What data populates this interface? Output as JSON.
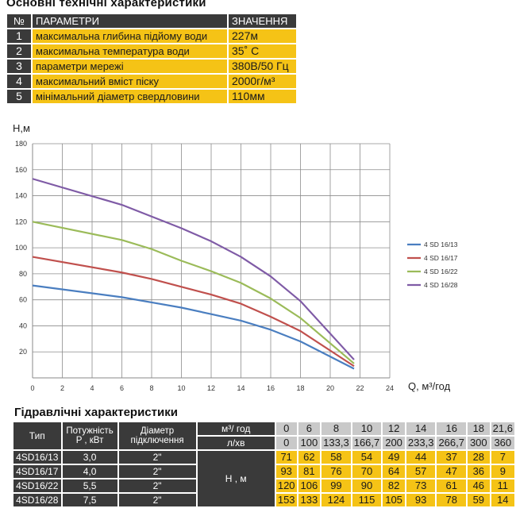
{
  "spec": {
    "title": "Основні технічні характеристики",
    "header": {
      "num": "№",
      "param": "ПАРАМЕТРИ",
      "value": "ЗНАЧЕННЯ"
    },
    "rows": [
      {
        "num": "1",
        "param": "максимальна глибина підйому води",
        "value": "227м"
      },
      {
        "num": "2",
        "param": "максимальна температура води",
        "value": "35˚ С"
      },
      {
        "num": "3",
        "param": "параметри мережі",
        "value": "380В/50 Гц"
      },
      {
        "num": "4",
        "param": "максимальний вміст піску",
        "value": "2000г/м³"
      },
      {
        "num": "5",
        "param": "мінімальний діаметр свердловини",
        "value": "110мм"
      }
    ]
  },
  "chart_data": {
    "type": "line",
    "ylabel": "H,м",
    "xlabel": "Q, м³/год",
    "xlim": [
      0,
      24
    ],
    "ylim": [
      0,
      180
    ],
    "xticks": [
      "0",
      "2",
      "4",
      "6",
      "8",
      "10",
      "12",
      "14",
      "16",
      "18",
      "20",
      "22",
      "24"
    ],
    "yticks": [
      "20",
      "40",
      "60",
      "80",
      "100",
      "120",
      "140",
      "160",
      "180"
    ],
    "grid": true,
    "legend_position": "right",
    "x": [
      0,
      6,
      8,
      10,
      12,
      14,
      16,
      18,
      21.6
    ],
    "series": [
      {
        "name": "4 SD 16/13",
        "color": "#4a7ec0",
        "values": [
          71,
          62,
          58,
          54,
          49,
          44,
          37,
          28,
          7
        ]
      },
      {
        "name": "4 SD 16/17",
        "color": "#c0504d",
        "values": [
          93,
          81,
          76,
          70,
          64,
          57,
          47,
          36,
          9
        ]
      },
      {
        "name": "4 SD 16/22",
        "color": "#9bbb59",
        "values": [
          120,
          106,
          99,
          90,
          82,
          73,
          61,
          46,
          11
        ]
      },
      {
        "name": "4 SD 16/28",
        "color": "#7f5ba6",
        "values": [
          153,
          133,
          124,
          115,
          105,
          93,
          78,
          59,
          14
        ]
      }
    ]
  },
  "hydraulic": {
    "title": "Гідравлічні характеристики",
    "col_type": "Тип",
    "col_power": [
      "Потужність",
      "P , кВт"
    ],
    "col_diameter": [
      "Діаметр",
      "підключення"
    ],
    "unit_m3h": "м³/ год",
    "unit_lmin": "л/хв",
    "head_label": "Н , м",
    "flow_m3h": [
      "0",
      "6",
      "8",
      "10",
      "12",
      "14",
      "16",
      "18",
      "21,6"
    ],
    "flow_lmin": [
      "0",
      "100",
      "133,3",
      "166,7",
      "200",
      "233,3",
      "266,7",
      "300",
      "360"
    ],
    "rows": [
      {
        "type": "4SD16/13",
        "power": "3,0",
        "diameter": "2\"",
        "h": [
          "71",
          "62",
          "58",
          "54",
          "49",
          "44",
          "37",
          "28",
          "7"
        ]
      },
      {
        "type": "4SD16/17",
        "power": "4,0",
        "diameter": "2\"",
        "h": [
          "93",
          "81",
          "76",
          "70",
          "64",
          "57",
          "47",
          "36",
          "9"
        ]
      },
      {
        "type": "4SD16/22",
        "power": "5,5",
        "diameter": "2\"",
        "h": [
          "120",
          "106",
          "99",
          "90",
          "82",
          "73",
          "61",
          "46",
          "11"
        ]
      },
      {
        "type": "4SD16/28",
        "power": "7,5",
        "diameter": "2\"",
        "h": [
          "153",
          "133",
          "124",
          "115",
          "105",
          "93",
          "78",
          "59",
          "14"
        ]
      }
    ]
  }
}
